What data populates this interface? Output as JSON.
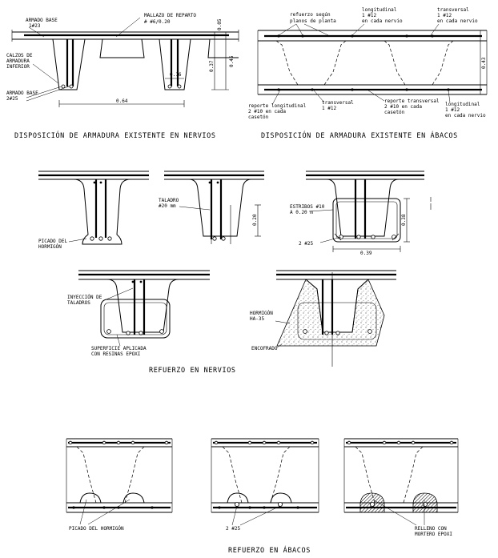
{
  "titles": {
    "nervios_existente": "DISPOSICIÓN DE ARMADURA EXISTENTE EN NERVIOS",
    "abacos_existente": "DISPOSICIÓN DE ARMADURA EXISTENTE EN ÁBACOS",
    "refuerzo_nervios": "REFUERZO EN NERVIOS",
    "refuerzo_abacos": "REFUERZO EN ÁBACOS"
  },
  "nervios_labels": {
    "armado_base_top_1": "ARMADO BASE",
    "armado_base_top_2": "1#23",
    "mallazo_1": "MALLAZO DE REPARTO",
    "mallazo_2": "# #6/0.20",
    "calzos_1": "CALZOS DE",
    "calzos_2": "ARMADURA",
    "calzos_3": "INFERIOR",
    "armado_base_bot_1": "ARMADO BASE",
    "armado_base_bot_2": "2#25",
    "dim_016": "0.16",
    "dim_064": "0.64",
    "dim_005": "0.05",
    "dim_037": "0.37",
    "dim_045": "0.45"
  },
  "abacos_labels": {
    "refuerzo_1": "refuerzo según",
    "refuerzo_2": "planos de planta",
    "long_top_1": "longitudinal",
    "long_top_2": "1 #12",
    "long_top_3": "en cada nervio",
    "trans_top_1": "transversal",
    "trans_top_2": "1 #12",
    "trans_top_3": "en cada nervio",
    "reporte_long_1": "reporte longitudinal",
    "reporte_long_2": "2 #10 en cada",
    "reporte_long_3": "casetón",
    "trans_bot_1": "transversal",
    "trans_bot_2": "1 #12",
    "reporte_trans_1": "reporte transversal",
    "reporte_trans_2": "2 #10 en cada",
    "reporte_trans_3": "casetón",
    "long_bot_1": "longitudinal",
    "long_bot_2": "1 #12",
    "long_bot_3": "en cada nervio",
    "dim_043": "0.43"
  },
  "refuerzo_nervios_labels": {
    "picado_1": "PICADO DEL",
    "picado_2": "HORMIGÓN",
    "taladro_1": "TALADRO",
    "taladro_2": "#20 mm",
    "estribos_1": "ESTRIBOS #10",
    "estribos_2": "A 0.20 m",
    "dos25": "2 #25",
    "dim_020": "0.20",
    "dim_038": "0.38",
    "dim_039": "0.39",
    "inyeccion_1": "INYECCIÓN DE",
    "inyeccion_2": "TALADROS",
    "superficie_1": "SUPERFICIE APLICADA",
    "superficie_2": "CON RESINAS EPOXI",
    "hormigon_1": "HORMIGÓN",
    "hormigon_2": "HA-35",
    "encofrado": "ENCOFRADO"
  },
  "refuerzo_abacos_labels": {
    "picado": "PICADO DEL HORMIGÓN",
    "dos25": "2 #25",
    "relleno_1": "RELLENO CON",
    "relleno_2": "MORTERO EPOXI"
  }
}
